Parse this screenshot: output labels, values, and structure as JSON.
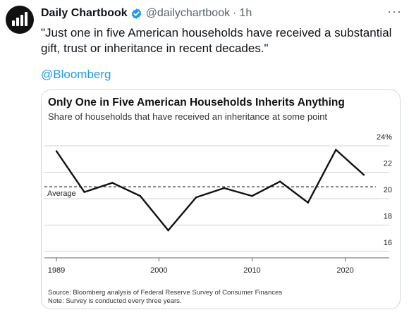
{
  "tweet": {
    "display_name": "Daily Chartbook",
    "handle": "@dailychartbook",
    "separator": "·",
    "time": "1h",
    "more_label": "···",
    "text": "\"Just one in five American households have received a substantial gift, trust or inheritance in recent decades.\"",
    "mention": "@Bloomberg"
  },
  "chart_data": {
    "type": "line",
    "title": "Only One in Five American Households Inherits Anything",
    "subtitle": "Share of households that have received an inheritance at some point",
    "x": [
      1989,
      1992,
      1995,
      1998,
      2001,
      2004,
      2007,
      2010,
      2013,
      2016,
      2019,
      2022
    ],
    "series": [
      {
        "values": [
          23.6,
          20.5,
          21.2,
          20.2,
          17.6,
          20.1,
          20.8,
          20.2,
          21.3,
          19.7,
          23.7,
          21.8
        ]
      }
    ],
    "average": {
      "label": "Average",
      "value": 20.9
    },
    "y_ticks": [
      {
        "value": 24,
        "label": "24%"
      },
      {
        "value": 22,
        "label": "22"
      },
      {
        "value": 20,
        "label": "20"
      },
      {
        "value": 18,
        "label": "18"
      },
      {
        "value": 16,
        "label": "16"
      }
    ],
    "x_ticks": [
      {
        "value": 1989,
        "label": "1989"
      },
      {
        "value": 2000,
        "label": "2000"
      },
      {
        "value": 2010,
        "label": "2010"
      },
      {
        "value": 2020,
        "label": "2020"
      }
    ],
    "ylim": [
      16,
      24
    ],
    "xlim": [
      1989,
      2022
    ],
    "grid": true,
    "source": "Source: Bloomberg analysis of Federal Reserve Survey of Consumer Finances",
    "note": "Note: Survey is conducted every three years.",
    "colors": {
      "line": "#111111",
      "grid": "#d0d0d0",
      "average": "#333333",
      "text": "#222222",
      "muted": "#555555"
    }
  }
}
